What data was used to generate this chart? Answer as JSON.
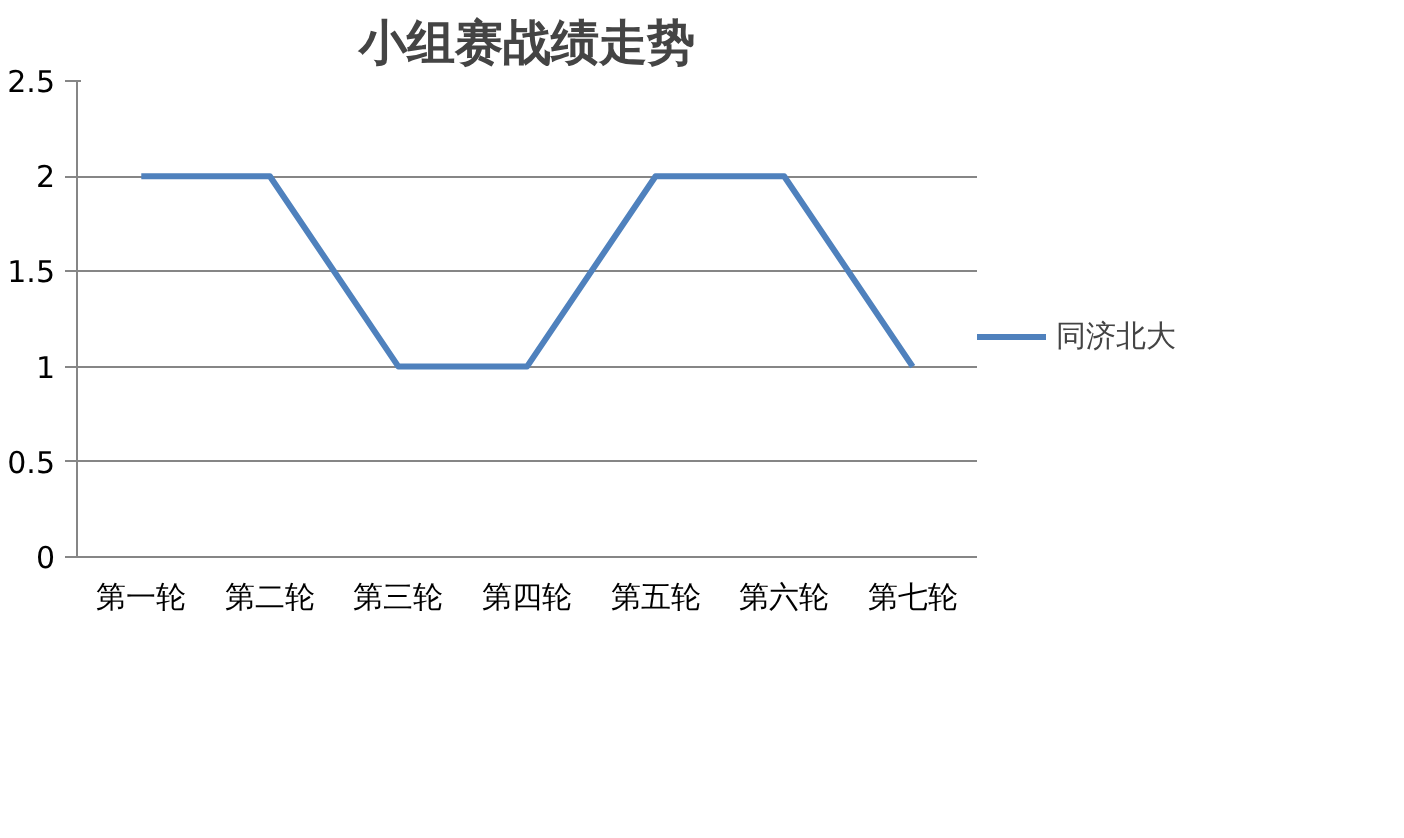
{
  "chart_data": {
    "type": "line",
    "title": "小组赛战绩走势",
    "categories": [
      "第一轮",
      "第二轮",
      "第三轮",
      "第四轮",
      "第五轮",
      "第六轮",
      "第七轮"
    ],
    "series": [
      {
        "name": "同济北大",
        "color": "#4f81bd",
        "values": [
          2,
          2,
          1,
          1,
          2,
          2,
          1
        ]
      }
    ],
    "ylim": [
      0,
      2.5
    ],
    "yticks": [
      0,
      0.5,
      1,
      1.5,
      2,
      2.5
    ],
    "grid": "y",
    "legend": "right",
    "line_style": "solid"
  }
}
